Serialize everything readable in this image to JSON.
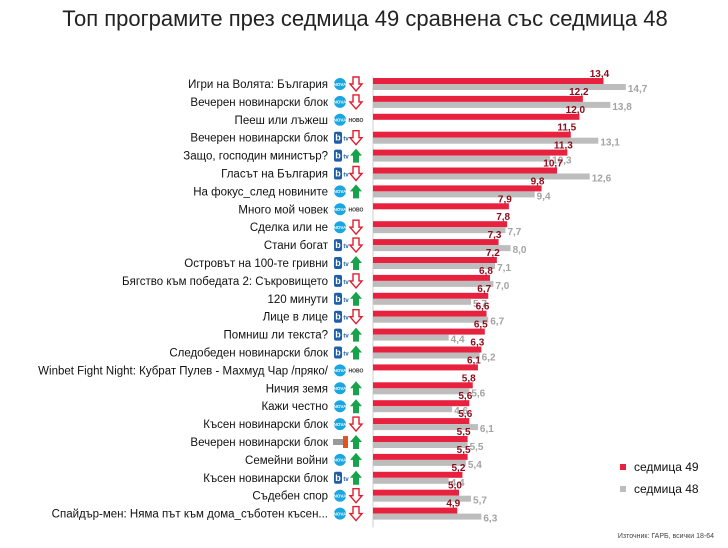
{
  "title": "Топ програмите през седмица 49 сравнена със седмица 48",
  "source": "Източник: ГАРБ, всички 18-64",
  "colors": {
    "week49": "#e8213e",
    "week48": "#bdbdbd",
    "up": "#16a34a",
    "down": "#e11d2e",
    "label49": "#8b0d1c",
    "label48": "#a3a3a3"
  },
  "channels": {
    "nova": "nova-logo-icon",
    "btv": "btv-logo-icon",
    "bnt1": "bnt1-logo-icon"
  },
  "chart_data": {
    "type": "bar",
    "orientation": "horizontal",
    "xlim": [
      0,
      15
    ],
    "categories": [
      "Игри на Волята: България",
      "Вечерен новинарски блок",
      "Пееш или лъжеш",
      "Вечерен новинарски блок",
      "Защо, господин министър?",
      "Гласът на България",
      "На фокус_след новините",
      "Много мой човек",
      "Сделка или не",
      "Стани богат",
      "Островът на 100-те гривни",
      "Бягство към победата 2: Съкровището",
      "120 минути",
      "Лице в лице",
      "Помниш ли текста?",
      "Следобеден новинарски блок",
      "Winbet Fight Night: Кубрат Пулев - Махмуд Чар /пряко/",
      "Ничия земя",
      "Кажи честно",
      "Късен новинарски блок",
      "Вечерен новинарски блок",
      "Семейни войни",
      "Късен новинарски блок",
      "Съдебен спор",
      "Спайдър-мен: Няма път към дома_съботен късен..."
    ],
    "channel": [
      "nova",
      "nova",
      "nova",
      "btv",
      "btv",
      "btv",
      "nova",
      "nova",
      "nova",
      "btv",
      "btv",
      "btv",
      "btv",
      "btv",
      "btv",
      "btv",
      "nova",
      "nova",
      "nova",
      "nova",
      "bnt1",
      "nova",
      "btv",
      "nova",
      "nova"
    ],
    "trend": [
      "down",
      "down",
      "none",
      "down",
      "up",
      "down",
      "up",
      "none",
      "down",
      "down",
      "up",
      "down",
      "up",
      "down",
      "up",
      "up",
      "none",
      "up",
      "up",
      "down",
      "up",
      "up",
      "up",
      "down",
      "down"
    ],
    "series": [
      {
        "name": "седмица 49",
        "values": [
          13.4,
          12.2,
          12.0,
          11.5,
          11.3,
          10.7,
          9.8,
          7.9,
          7.8,
          7.3,
          7.2,
          6.8,
          6.7,
          6.6,
          6.5,
          6.3,
          6.1,
          5.8,
          5.6,
          5.6,
          5.5,
          5.5,
          5.2,
          5.0,
          4.9
        ],
        "labels": [
          "13,4",
          "12,2",
          "12,0",
          "11,5",
          "11,3",
          "10,7",
          "9,8",
          "7,9",
          "7,8",
          "7,3",
          "7,2",
          "6,8",
          "6,7",
          "6,6",
          "6,5",
          "6,3",
          "6,1",
          "5,8",
          "5,6",
          "5,6",
          "5,5",
          "5,5",
          "5,2",
          "5,0",
          "4,9"
        ]
      },
      {
        "name": "седмица 48",
        "values": [
          14.7,
          13.8,
          null,
          13.1,
          10.3,
          12.6,
          9.4,
          null,
          7.7,
          8.0,
          7.1,
          7.0,
          5.7,
          6.7,
          4.4,
          6.2,
          null,
          5.6,
          4.6,
          6.1,
          5.5,
          5.4,
          4.4,
          5.7,
          6.3
        ],
        "labels": [
          "14,7",
          "13,8",
          "",
          "13,1",
          "10,3",
          "12,6",
          "9,4",
          "",
          "7,7",
          "8,0",
          "7,1",
          "7,0",
          "5,7",
          "6,7",
          "4,4",
          "6,2",
          "",
          "5,6",
          "4,6",
          "6,1",
          "5,5",
          "5,4",
          "4,4",
          "5,7",
          "6,3"
        ]
      }
    ],
    "legend_position": "bottom-right"
  }
}
